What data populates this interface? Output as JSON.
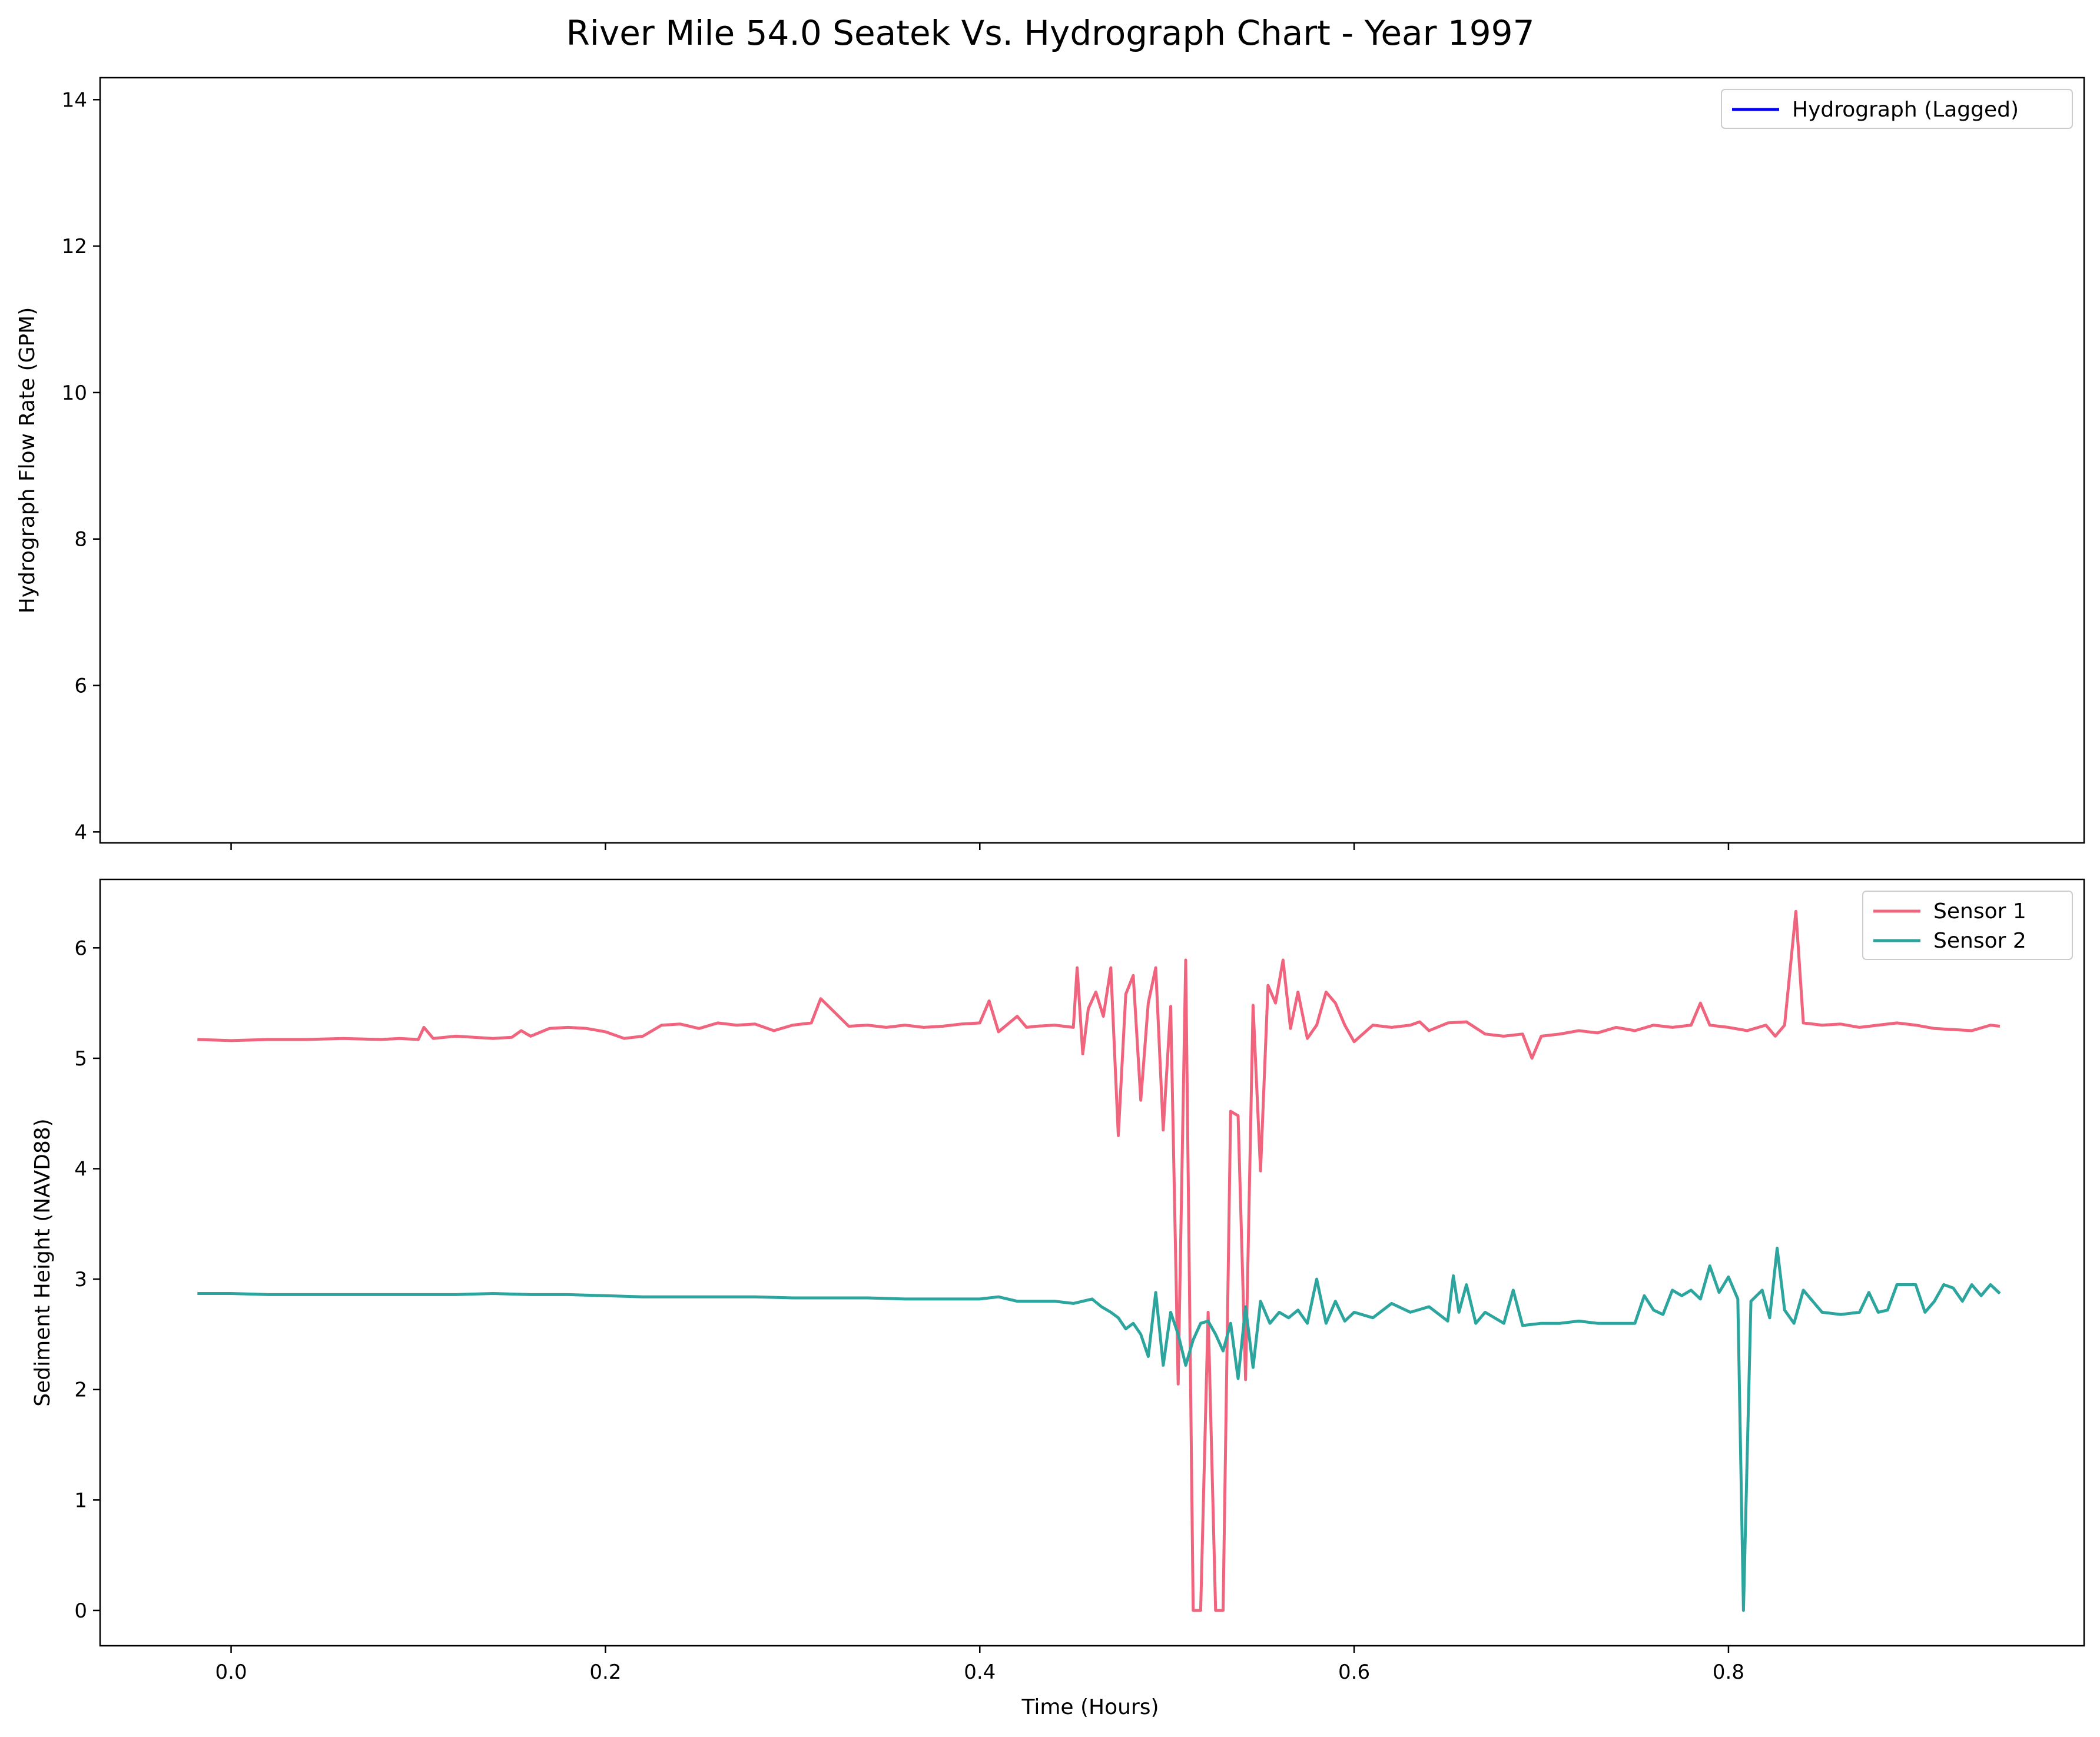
{
  "chart_data": {
    "title": "River Mile 54.0 Seatek Vs. Hydrograph Chart - Year 1997",
    "xlabel": "Time (Hours)",
    "xlim": [
      -0.07,
      0.99
    ],
    "xticks": [
      0.0,
      0.2,
      0.4,
      0.6,
      0.8
    ],
    "xtick_labels": [
      "0.0",
      "0.2",
      "0.4",
      "0.6",
      "0.8"
    ],
    "panels": [
      {
        "type": "line",
        "ylabel": "Hydrograph Flow Rate (GPM)",
        "ylim": [
          3.85,
          14.3
        ],
        "yticks": [
          4,
          6,
          8,
          10,
          12,
          14
        ],
        "ytick_labels": [
          "4",
          "6",
          "8",
          "10",
          "12",
          "14"
        ],
        "grid": false,
        "legend_position": "top-right",
        "series": [
          {
            "name": "Hydrograph (Lagged)",
            "color": "#0000ff",
            "x": [],
            "y": []
          }
        ]
      },
      {
        "type": "line",
        "ylabel": "Sediment Height (NAVD88)",
        "ylim": [
          -0.32,
          6.62
        ],
        "yticks": [
          0,
          1,
          2,
          3,
          4,
          5,
          6
        ],
        "ytick_labels": [
          "0",
          "1",
          "2",
          "3",
          "4",
          "5",
          "6"
        ],
        "grid": false,
        "legend_position": "top-right",
        "series": [
          {
            "name": "Sensor 1",
            "color": "#f0647e",
            "x": [
              -0.018,
              0.0,
              0.02,
              0.04,
              0.06,
              0.08,
              0.09,
              0.1,
              0.103,
              0.108,
              0.12,
              0.14,
              0.15,
              0.155,
              0.16,
              0.17,
              0.18,
              0.19,
              0.2,
              0.21,
              0.22,
              0.23,
              0.24,
              0.25,
              0.26,
              0.27,
              0.28,
              0.29,
              0.3,
              0.31,
              0.315,
              0.33,
              0.34,
              0.35,
              0.36,
              0.37,
              0.38,
              0.39,
              0.4,
              0.405,
              0.41,
              0.42,
              0.425,
              0.43,
              0.44,
              0.45,
              0.452,
              0.455,
              0.458,
              0.462,
              0.466,
              0.47,
              0.474,
              0.478,
              0.482,
              0.486,
              0.49,
              0.494,
              0.498,
              0.502,
              0.506,
              0.51,
              0.514,
              0.518,
              0.522,
              0.526,
              0.53,
              0.534,
              0.538,
              0.542,
              0.546,
              0.55,
              0.554,
              0.558,
              0.562,
              0.566,
              0.57,
              0.575,
              0.58,
              0.585,
              0.59,
              0.595,
              0.6,
              0.61,
              0.62,
              0.63,
              0.635,
              0.64,
              0.65,
              0.66,
              0.67,
              0.68,
              0.69,
              0.695,
              0.7,
              0.71,
              0.72,
              0.73,
              0.74,
              0.75,
              0.76,
              0.77,
              0.78,
              0.785,
              0.79,
              0.8,
              0.81,
              0.82,
              0.825,
              0.83,
              0.836,
              0.84,
              0.85,
              0.86,
              0.87,
              0.88,
              0.89,
              0.9,
              0.91,
              0.92,
              0.93,
              0.94,
              0.945
            ],
            "y": [
              5.17,
              5.16,
              5.17,
              5.17,
              5.18,
              5.17,
              5.18,
              5.17,
              5.28,
              5.18,
              5.2,
              5.18,
              5.19,
              5.25,
              5.2,
              5.27,
              5.28,
              5.27,
              5.24,
              5.18,
              5.2,
              5.3,
              5.31,
              5.27,
              5.32,
              5.3,
              5.31,
              5.25,
              5.3,
              5.32,
              5.54,
              5.29,
              5.3,
              5.28,
              5.3,
              5.28,
              5.29,
              5.31,
              5.32,
              5.52,
              5.24,
              5.38,
              5.28,
              5.29,
              5.3,
              5.28,
              5.82,
              5.04,
              5.45,
              5.6,
              5.38,
              5.82,
              4.3,
              5.58,
              5.75,
              4.62,
              5.5,
              5.82,
              4.35,
              5.47,
              2.05,
              5.89,
              0.0,
              0.0,
              2.7,
              0.0,
              0.0,
              4.52,
              4.48,
              2.09,
              5.48,
              3.98,
              5.66,
              5.5,
              5.89,
              5.27,
              5.6,
              5.18,
              5.3,
              5.6,
              5.5,
              5.3,
              5.15,
              5.3,
              5.28,
              5.3,
              5.33,
              5.25,
              5.32,
              5.33,
              5.22,
              5.2,
              5.22,
              5.0,
              5.2,
              5.22,
              5.25,
              5.23,
              5.28,
              5.25,
              5.3,
              5.28,
              5.3,
              5.5,
              5.3,
              5.28,
              5.25,
              5.3,
              5.2,
              5.3,
              6.33,
              5.32,
              5.3,
              5.31,
              5.28,
              5.3,
              5.32,
              5.3,
              5.27,
              5.26,
              5.25,
              5.3,
              5.29
            ]
          },
          {
            "name": "Sensor 2",
            "color": "#2ba59d",
            "x": [
              -0.018,
              0.0,
              0.02,
              0.04,
              0.06,
              0.08,
              0.1,
              0.12,
              0.14,
              0.16,
              0.18,
              0.2,
              0.22,
              0.24,
              0.26,
              0.28,
              0.3,
              0.32,
              0.34,
              0.36,
              0.38,
              0.4,
              0.41,
              0.42,
              0.44,
              0.45,
              0.46,
              0.465,
              0.47,
              0.474,
              0.478,
              0.482,
              0.486,
              0.49,
              0.494,
              0.498,
              0.502,
              0.506,
              0.51,
              0.514,
              0.518,
              0.522,
              0.526,
              0.53,
              0.534,
              0.538,
              0.542,
              0.546,
              0.55,
              0.555,
              0.56,
              0.565,
              0.57,
              0.575,
              0.58,
              0.585,
              0.59,
              0.595,
              0.6,
              0.61,
              0.62,
              0.63,
              0.64,
              0.65,
              0.653,
              0.656,
              0.66,
              0.665,
              0.67,
              0.68,
              0.685,
              0.69,
              0.7,
              0.71,
              0.72,
              0.73,
              0.74,
              0.75,
              0.755,
              0.76,
              0.765,
              0.77,
              0.775,
              0.78,
              0.785,
              0.79,
              0.795,
              0.8,
              0.805,
              0.808,
              0.812,
              0.818,
              0.822,
              0.826,
              0.83,
              0.835,
              0.84,
              0.85,
              0.86,
              0.87,
              0.875,
              0.88,
              0.885,
              0.89,
              0.9,
              0.905,
              0.91,
              0.915,
              0.92,
              0.925,
              0.93,
              0.935,
              0.94,
              0.945
            ],
            "y": [
              2.87,
              2.87,
              2.86,
              2.86,
              2.86,
              2.86,
              2.86,
              2.86,
              2.87,
              2.86,
              2.86,
              2.85,
              2.84,
              2.84,
              2.84,
              2.84,
              2.83,
              2.83,
              2.83,
              2.82,
              2.82,
              2.82,
              2.84,
              2.8,
              2.8,
              2.78,
              2.82,
              2.75,
              2.7,
              2.65,
              2.55,
              2.6,
              2.5,
              2.3,
              2.88,
              2.22,
              2.7,
              2.5,
              2.22,
              2.45,
              2.6,
              2.62,
              2.5,
              2.35,
              2.6,
              2.1,
              2.75,
              2.2,
              2.8,
              2.6,
              2.7,
              2.65,
              2.72,
              2.6,
              3.0,
              2.6,
              2.8,
              2.62,
              2.7,
              2.65,
              2.78,
              2.7,
              2.75,
              2.62,
              3.03,
              2.7,
              2.95,
              2.6,
              2.7,
              2.6,
              2.9,
              2.58,
              2.6,
              2.6,
              2.62,
              2.6,
              2.6,
              2.6,
              2.85,
              2.72,
              2.68,
              2.9,
              2.85,
              2.9,
              2.82,
              3.12,
              2.88,
              3.02,
              2.82,
              0.0,
              2.8,
              2.9,
              2.65,
              3.28,
              2.72,
              2.6,
              2.9,
              2.7,
              2.68,
              2.7,
              2.88,
              2.7,
              2.72,
              2.95,
              2.95,
              2.7,
              2.8,
              2.95,
              2.92,
              2.8,
              2.95,
              2.85,
              2.95,
              2.87
            ]
          }
        ]
      }
    ]
  }
}
